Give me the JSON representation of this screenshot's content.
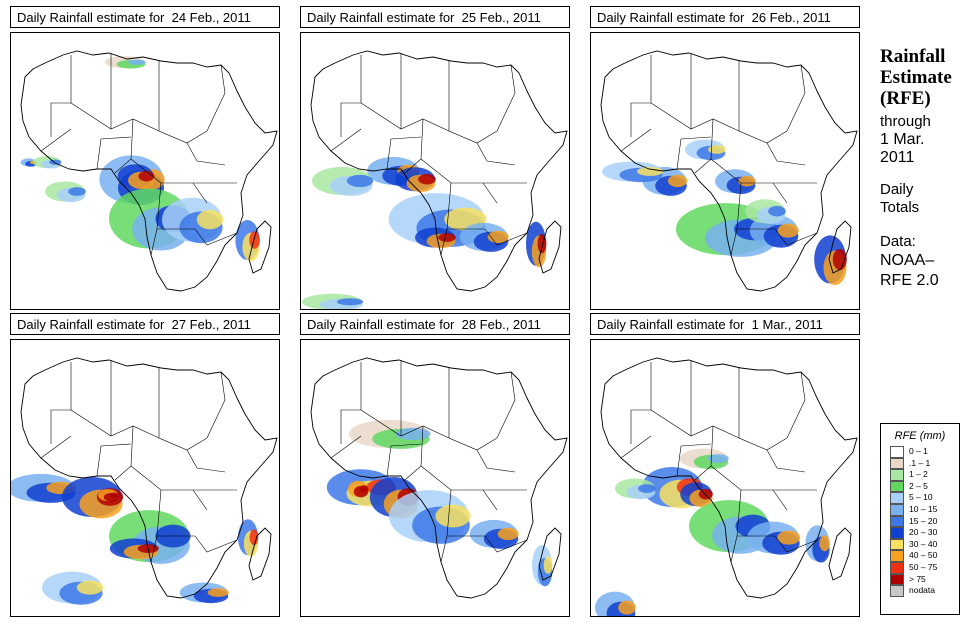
{
  "panels": [
    {
      "title": "Daily Rainfall estimate for  24 Feb., 2011"
    },
    {
      "title": "Daily Rainfall estimate for  25 Feb., 2011"
    },
    {
      "title": "Daily Rainfall estimate for  26 Feb., 2011"
    },
    {
      "title": "Daily Rainfall estimate for  27 Feb., 2011"
    },
    {
      "title": "Daily Rainfall estimate for  28 Feb., 2011"
    },
    {
      "title": "Daily Rainfall estimate for  1 Mar., 2011"
    }
  ],
  "side": {
    "title_line1": "Rainfall",
    "title_line2": "Estimate",
    "title_line3": "(RFE)",
    "through": "through",
    "date_line1": "1 Mar.",
    "date_line2": "2011",
    "daily_line1": "Daily",
    "daily_line2": "Totals",
    "data_line1": "Data:",
    "data_line2": "NOAA–",
    "data_line3": "RFE 2.0"
  },
  "legend": {
    "title": "RFE (mm)",
    "items": [
      {
        "label": "0 – 1",
        "color": "#ffffff"
      },
      {
        "label": ".1 – 1",
        "color": "#e8d8c8"
      },
      {
        "label": "1 – 2",
        "color": "#a8e8a0"
      },
      {
        "label": "2 – 5",
        "color": "#60d860"
      },
      {
        "label": "5 – 10",
        "color": "#a8d0f8"
      },
      {
        "label": "10 – 15",
        "color": "#78b0f0"
      },
      {
        "label": "15 – 20",
        "color": "#3c78e8"
      },
      {
        "label": "20 – 30",
        "color": "#1040d0"
      },
      {
        "label": "30 – 40",
        "color": "#f8e060"
      },
      {
        "label": "40 – 50",
        "color": "#f8a020"
      },
      {
        "label": "50 – 75",
        "color": "#f03010"
      },
      {
        "label": "> 75",
        "color": "#b00000"
      },
      {
        "label": "nodata",
        "color": "#c8c8c8"
      }
    ]
  }
}
